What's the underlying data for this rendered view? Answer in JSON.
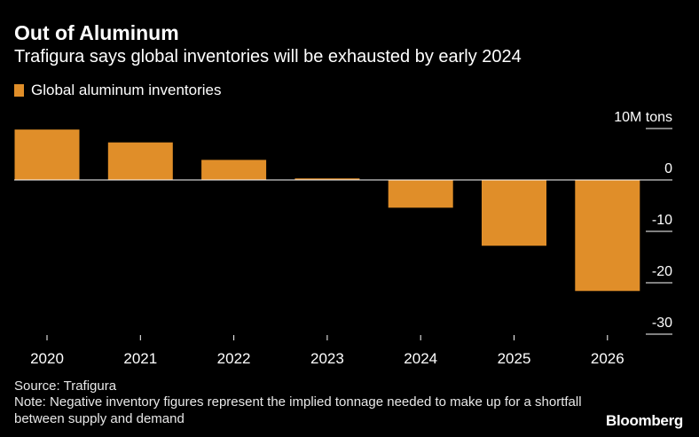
{
  "title": "Out of Aluminum",
  "subtitle": "Trafigura says global inventories will be exhausted by early 2024",
  "legend_label": "Global aluminum inventories",
  "source": "Source: Trafigura",
  "note": "Note: Negative inventory figures represent the implied tonnage needed to make up for a shortfall between supply and demand",
  "brand": "Bloomberg",
  "colors": {
    "bar": "#E08E29",
    "background": "#000000",
    "axis": "#ffffff"
  },
  "chart_data": {
    "type": "bar",
    "categories": [
      "2020",
      "2021",
      "2022",
      "2023",
      "2024",
      "2025",
      "2026"
    ],
    "series": [
      {
        "name": "Global aluminum inventories",
        "values": [
          9.8,
          7.3,
          3.9,
          0.3,
          -5.4,
          -12.8,
          -21.6
        ]
      }
    ],
    "ylabel": "10M tons",
    "yticks": [
      10,
      0,
      -10,
      -20,
      -30
    ],
    "ytick_labels": [
      "10M tons",
      "0",
      "-10",
      "-20",
      "-30"
    ],
    "ylim": [
      -30,
      10
    ],
    "legend_position": "top-left",
    "grid": false
  }
}
